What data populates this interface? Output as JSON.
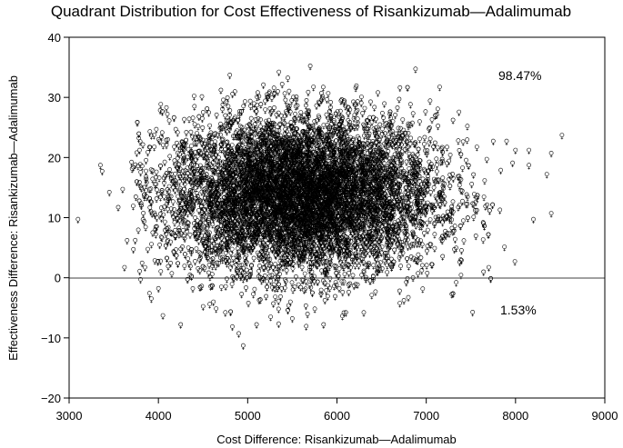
{
  "chart_data": {
    "type": "scatter",
    "title": "Quadrant Distribution for Cost Effectiveness of Risankizumab—Adalimumab",
    "xlabel": "Cost Difference: Risankizumab—Adalimumab",
    "ylabel": "Effectiveness Difference: Risankizumab—Adalimumab",
    "xlim": [
      3000,
      9000
    ],
    "ylim": [
      -20,
      40
    ],
    "xticks": [
      "3000",
      "4000",
      "5000",
      "6000",
      "7000",
      "8000",
      "9000"
    ],
    "yticks": [
      "−20",
      "−10",
      "0",
      "10",
      "20",
      "30",
      "40"
    ],
    "reference_line_y": 0,
    "marker": "open circle with plus",
    "grid": false,
    "annotations": [
      {
        "text": "98.47%",
        "quadrant": "upper-right",
        "x": 7850,
        "y": 33
      },
      {
        "text": "1.53%",
        "quadrant": "lower-right",
        "x": 7850,
        "y": -5.5
      }
    ],
    "series": [
      {
        "points": [
          {
            "x": 3100,
            "y": 9.5
          },
          {
            "x": 3350,
            "y": 18.5
          },
          {
            "x": 3370,
            "y": 17.5
          },
          {
            "x": 3450,
            "y": 14
          },
          {
            "x": 3550,
            "y": 11.5
          },
          {
            "x": 3600,
            "y": 14.5
          },
          {
            "x": 3620,
            "y": 1.5
          },
          {
            "x": 3650,
            "y": 6
          },
          {
            "x": 3700,
            "y": 19
          },
          {
            "x": 3720,
            "y": 4.5
          },
          {
            "x": 3780,
            "y": 23
          },
          {
            "x": 3800,
            "y": -0.5
          },
          {
            "x": 3850,
            "y": 1.5
          },
          {
            "x": 3900,
            "y": 21.5
          },
          {
            "x": 3950,
            "y": 23.5
          },
          {
            "x": 4000,
            "y": -2
          },
          {
            "x": 4050,
            "y": -6.5
          },
          {
            "x": 4100,
            "y": 27
          },
          {
            "x": 4150,
            "y": 0.5
          },
          {
            "x": 4250,
            "y": -8
          },
          {
            "x": 4400,
            "y": 30
          },
          {
            "x": 4500,
            "y": -5
          },
          {
            "x": 4700,
            "y": 31
          },
          {
            "x": 4750,
            "y": -6
          },
          {
            "x": 4800,
            "y": 33.5
          },
          {
            "x": 4900,
            "y": -9.5
          },
          {
            "x": 4950,
            "y": -11.5
          },
          {
            "x": 5100,
            "y": -8
          },
          {
            "x": 5350,
            "y": 34
          },
          {
            "x": 5450,
            "y": 33
          },
          {
            "x": 5500,
            "y": -7
          },
          {
            "x": 5700,
            "y": 35
          },
          {
            "x": 5850,
            "y": -8
          },
          {
            "x": 6100,
            "y": -6
          },
          {
            "x": 6300,
            "y": -6
          },
          {
            "x": 6750,
            "y": -4
          },
          {
            "x": 6800,
            "y": -3.5
          },
          {
            "x": 6880,
            "y": 34.5
          },
          {
            "x": 6950,
            "y": 1
          },
          {
            "x": 7150,
            "y": 31.5
          },
          {
            "x": 7300,
            "y": 26
          },
          {
            "x": 7700,
            "y": 1.5
          },
          {
            "x": 7750,
            "y": 22.5
          },
          {
            "x": 7900,
            "y": 22.5
          },
          {
            "x": 8000,
            "y": 21
          },
          {
            "x": 8150,
            "y": 21
          },
          {
            "x": 8200,
            "y": 9.5
          },
          {
            "x": 8350,
            "y": 17
          },
          {
            "x": 8400,
            "y": 10.5
          },
          {
            "x": 8400,
            "y": 20.5
          },
          {
            "x": 8520,
            "y": 23.5
          },
          {
            "x": 8150,
            "y": 18.5
          }
        ],
        "cloud": {
          "n_points": 7500,
          "x_mean": 5600,
          "x_sd": 750,
          "y_mean": 13.7,
          "y_sd": 6.5,
          "x_min": 3700,
          "x_max": 8000,
          "y_min": -9,
          "y_max": 32
        }
      }
    ]
  }
}
